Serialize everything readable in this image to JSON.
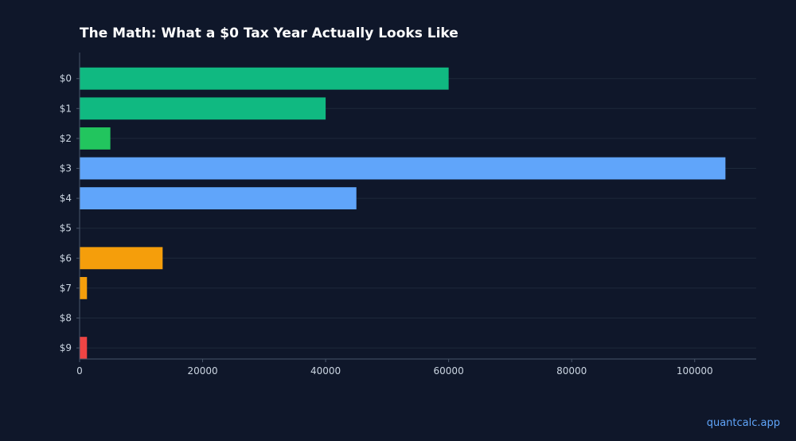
{
  "chart_data": {
    "type": "bar",
    "orientation": "horizontal",
    "title": "The Math: What a $0 Tax Year Actually Looks Like",
    "xlabel": "",
    "ylabel": "",
    "categories": [
      "$0",
      "$1",
      "$2",
      "$3",
      "$4",
      "$5",
      "$6",
      "$7",
      "$8",
      "$9"
    ],
    "values": [
      60000,
      40000,
      5000,
      105000,
      45000,
      0,
      13500,
      1200,
      0,
      1200
    ],
    "bar_colors": [
      "#10b981",
      "#10b981",
      "#22c55e",
      "#60a5fa",
      "#60a5fa",
      "#60a5fa",
      "#f59e0b",
      "#f59e0b",
      "#f59e0b",
      "#ef4444"
    ],
    "xlim": [
      0,
      110000
    ],
    "xticks": [
      0,
      20000,
      40000,
      60000,
      80000,
      100000
    ],
    "xtick_labels": [
      "0",
      "20000",
      "40000",
      "60000",
      "80000",
      "100000"
    ],
    "grid": "horizontal",
    "background": "#0f172a"
  },
  "watermark": "quantcalc.app"
}
